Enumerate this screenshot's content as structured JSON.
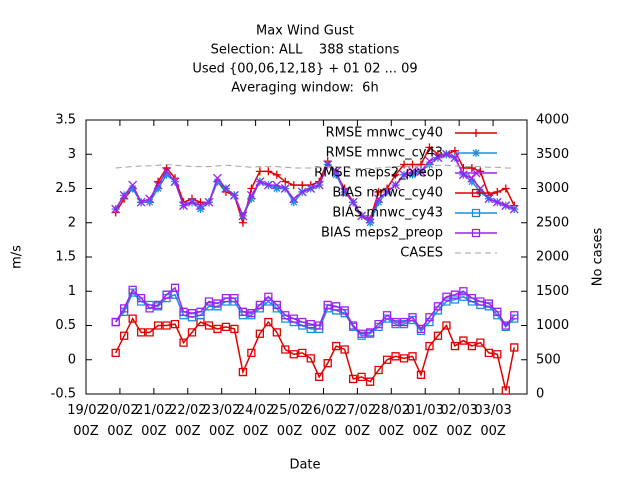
{
  "chart_data": {
    "type": "line",
    "title": [
      "Max Wind Gust",
      "Selection: ALL    388 stations",
      "Used {00,06,12,18} + 01 02 ... 09",
      "Averaging window:  6h"
    ],
    "xlabel": "Date",
    "ylabel": "m/s",
    "y2label": "No cases",
    "xlim": [
      0,
      312
    ],
    "xticks": [
      {
        "value": 0,
        "label": "19/02\n00Z"
      },
      {
        "value": 24,
        "label": "20/02\n00Z"
      },
      {
        "value": 48,
        "label": "21/02\n00Z"
      },
      {
        "value": 72,
        "label": "22/02\n00Z"
      },
      {
        "value": 96,
        "label": "23/02\n00Z"
      },
      {
        "value": 120,
        "label": "24/02\n00Z"
      },
      {
        "value": 144,
        "label": "25/02\n00Z"
      },
      {
        "value": 168,
        "label": "26/02\n00Z"
      },
      {
        "value": 192,
        "label": "27/02\n00Z"
      },
      {
        "value": 216,
        "label": "28/02\n00Z"
      },
      {
        "value": 240,
        "label": "01/03\n00Z"
      },
      {
        "value": 264,
        "label": "02/03\n00Z"
      },
      {
        "value": 288,
        "label": "03/03\n00Z"
      }
    ],
    "ylim": [
      -0.5,
      3.5
    ],
    "yticks": [
      -0.5,
      0,
      0.5,
      1,
      1.5,
      2,
      2.5,
      3,
      3.5
    ],
    "y2lim": [
      0,
      4000
    ],
    "y2ticks": [
      0,
      500,
      1000,
      1500,
      2000,
      2500,
      3000,
      3500,
      4000
    ],
    "grid": false,
    "legend": "top-right",
    "x": [
      21,
      27,
      33,
      39,
      45,
      51,
      57,
      63,
      69,
      75,
      81,
      87,
      93,
      99,
      105,
      111,
      117,
      123,
      129,
      135,
      141,
      147,
      153,
      159,
      165,
      171,
      177,
      183,
      189,
      195,
      201,
      207,
      213,
      219,
      225,
      231,
      237,
      243,
      249,
      255,
      261,
      267,
      273,
      279,
      285,
      291,
      297,
      303
    ],
    "series": [
      {
        "name": "RMSE mnwc_cy40",
        "color": "#e00000",
        "marker": "plus",
        "values": [
          2.15,
          2.35,
          2.5,
          2.3,
          2.3,
          2.6,
          2.8,
          2.65,
          2.3,
          2.35,
          2.3,
          2.3,
          2.6,
          2.45,
          2.4,
          2.0,
          2.5,
          2.75,
          2.75,
          2.7,
          2.6,
          2.55,
          2.55,
          2.55,
          2.6,
          2.9,
          2.7,
          2.5,
          2.3,
          2.1,
          2.05,
          2.45,
          2.5,
          2.7,
          2.85,
          2.85,
          2.85,
          3.1,
          3.0,
          3.0,
          3.05,
          2.8,
          2.8,
          2.75,
          2.4,
          2.45,
          2.5,
          2.25
        ]
      },
      {
        "name": "RMSE mnwc_cy43",
        "color": "#1a8fe0",
        "marker": "star",
        "values": [
          2.2,
          2.4,
          2.5,
          2.3,
          2.3,
          2.5,
          2.7,
          2.6,
          2.25,
          2.3,
          2.2,
          2.3,
          2.6,
          2.5,
          2.4,
          2.1,
          2.35,
          2.6,
          2.55,
          2.5,
          2.5,
          2.3,
          2.45,
          2.5,
          2.55,
          2.85,
          2.7,
          2.45,
          2.3,
          2.1,
          2.0,
          2.3,
          2.45,
          2.55,
          2.7,
          2.7,
          2.75,
          2.85,
          2.95,
          3.0,
          2.95,
          2.7,
          2.6,
          2.45,
          2.35,
          2.3,
          2.25,
          2.2
        ]
      },
      {
        "name": "RMSE meps2_preop",
        "color": "#a020f0",
        "marker": "x",
        "values": [
          2.2,
          2.4,
          2.55,
          2.3,
          2.35,
          2.55,
          2.75,
          2.6,
          2.25,
          2.3,
          2.25,
          2.3,
          2.65,
          2.5,
          2.4,
          2.1,
          2.4,
          2.6,
          2.55,
          2.55,
          2.5,
          2.35,
          2.45,
          2.5,
          2.55,
          2.85,
          2.75,
          2.45,
          2.3,
          2.1,
          2.05,
          2.35,
          2.45,
          2.55,
          2.7,
          2.75,
          2.75,
          2.9,
          2.95,
          3.0,
          2.95,
          2.7,
          2.65,
          2.5,
          2.35,
          2.3,
          2.25,
          2.2
        ]
      },
      {
        "name": "BIAS mnwc_cy40",
        "color": "#e00000",
        "marker": "square",
        "values": [
          0.1,
          0.35,
          0.6,
          0.4,
          0.4,
          0.5,
          0.5,
          0.52,
          0.25,
          0.4,
          0.55,
          0.5,
          0.45,
          0.48,
          0.45,
          -0.18,
          0.1,
          0.38,
          0.55,
          0.4,
          0.15,
          0.08,
          0.1,
          0.02,
          -0.25,
          -0.05,
          0.2,
          0.15,
          -0.28,
          -0.25,
          -0.32,
          -0.15,
          0.0,
          0.05,
          0.02,
          0.05,
          -0.22,
          0.2,
          0.35,
          0.5,
          0.2,
          0.28,
          0.2,
          0.25,
          0.1,
          0.08,
          -0.45,
          0.18
        ]
      },
      {
        "name": "BIAS mnwc_cy43",
        "color": "#1a8fe0",
        "marker": "square",
        "values": [
          0.55,
          0.7,
          0.98,
          0.85,
          0.8,
          0.78,
          0.9,
          0.95,
          0.65,
          0.62,
          0.65,
          0.78,
          0.78,
          0.85,
          0.85,
          0.65,
          0.65,
          0.75,
          0.85,
          0.75,
          0.6,
          0.55,
          0.5,
          0.45,
          0.45,
          0.75,
          0.72,
          0.68,
          0.48,
          0.35,
          0.38,
          0.48,
          0.6,
          0.52,
          0.52,
          0.58,
          0.42,
          0.55,
          0.72,
          0.85,
          0.88,
          0.92,
          0.85,
          0.8,
          0.78,
          0.65,
          0.48,
          0.6
        ]
      },
      {
        "name": "BIAS meps2_preop",
        "color": "#a020f0",
        "marker": "square",
        "values": [
          0.55,
          0.75,
          1.02,
          0.9,
          0.75,
          0.8,
          0.95,
          1.05,
          0.7,
          0.68,
          0.7,
          0.85,
          0.82,
          0.9,
          0.9,
          0.7,
          0.68,
          0.8,
          0.92,
          0.8,
          0.65,
          0.6,
          0.55,
          0.52,
          0.5,
          0.8,
          0.78,
          0.72,
          0.5,
          0.38,
          0.4,
          0.52,
          0.65,
          0.55,
          0.55,
          0.62,
          0.45,
          0.62,
          0.78,
          0.92,
          0.95,
          1.0,
          0.9,
          0.85,
          0.82,
          0.7,
          0.5,
          0.65
        ]
      },
      {
        "name": "CASES",
        "color": "#a0a0a0",
        "dashed": true,
        "axis": "y2",
        "values": [
          3300,
          3310,
          3320,
          3330,
          3330,
          3340,
          3350,
          3340,
          3330,
          3320,
          3320,
          3320,
          3330,
          3340,
          3330,
          3320,
          3310,
          3320,
          3320,
          3320,
          3310,
          3300,
          3300,
          3300,
          3310,
          3320,
          3320,
          3310,
          3290,
          3290,
          3290,
          3300,
          3310,
          3320,
          3320,
          3320,
          3330,
          3330,
          3340,
          3340,
          3330,
          3320,
          3320,
          3320,
          3310,
          3310,
          3300,
          3300
        ]
      }
    ]
  }
}
